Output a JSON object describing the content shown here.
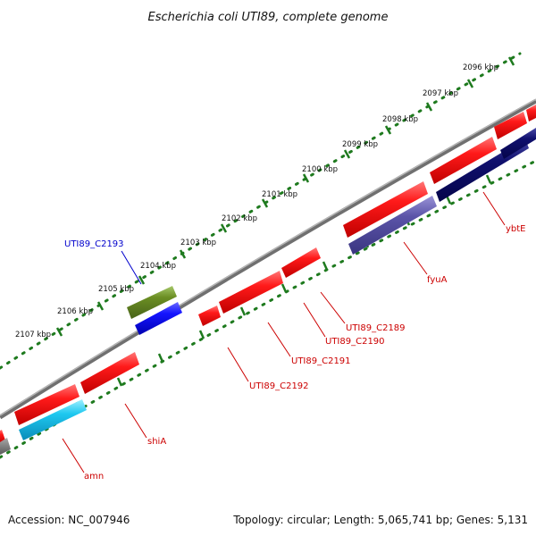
{
  "title": "Escherichia coli UTI89, complete genome",
  "footer": {
    "accession": "Accession: NC_007946",
    "summary": "Topology: circular; Length: 5,065,741 bp; Genes: 5,131"
  },
  "colors": {
    "backbone": "#8a8a8a",
    "tick_dots": "#1e7a1e",
    "forward_gene": "#ff1a1a",
    "label_red": "#cc0000",
    "label_blue": "#0000cc"
  },
  "scale_ticks": [
    {
      "label": "2096 kbp"
    },
    {
      "label": "2097 kbp"
    },
    {
      "label": "2098 kbp"
    },
    {
      "label": "2099 kbp"
    },
    {
      "label": "2100 kbp"
    },
    {
      "label": "2101 kbp"
    },
    {
      "label": "2102 kbp"
    },
    {
      "label": "2103 kbp"
    },
    {
      "label": "2104 kbp"
    },
    {
      "label": "2105 kbp"
    },
    {
      "label": "2106 kbp"
    },
    {
      "label": "2107 kbp"
    }
  ],
  "gene_labels": [
    {
      "text": "UTI89_C2193",
      "color": "blue"
    },
    {
      "text": "ybtE",
      "color": "red"
    },
    {
      "text": "fyuA",
      "color": "red"
    },
    {
      "text": "UTI89_C2189",
      "color": "red"
    },
    {
      "text": "UTI89_C2190",
      "color": "red"
    },
    {
      "text": "UTI89_C2191",
      "color": "red"
    },
    {
      "text": "UTI89_C2192",
      "color": "red"
    },
    {
      "text": "shiA",
      "color": "red"
    },
    {
      "text": "amn",
      "color": "red"
    }
  ]
}
